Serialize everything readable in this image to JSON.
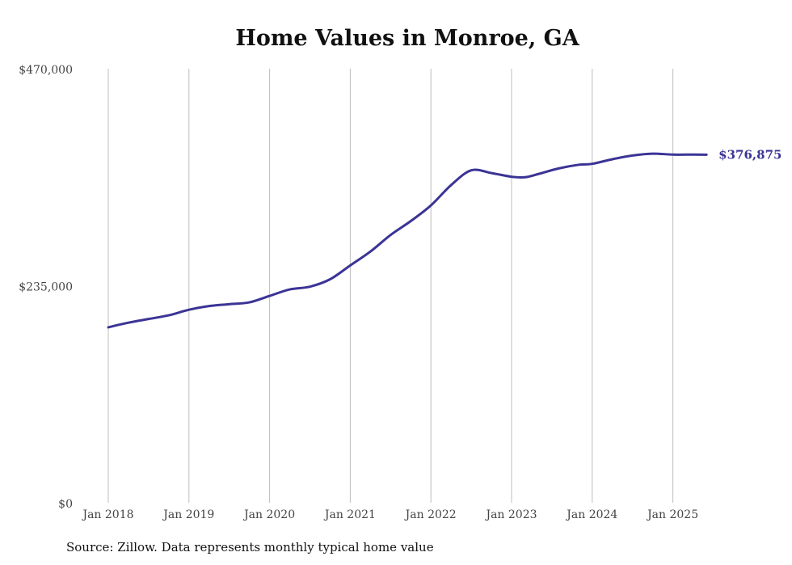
{
  "chart_data": {
    "type": "line",
    "title": "Home Values in Monroe, GA",
    "xlabel": "",
    "ylabel": "",
    "ylim": [
      0,
      470000
    ],
    "y_ticks": [
      "$0",
      "$235,000",
      "$470,000"
    ],
    "y_tick_values": [
      0,
      235000,
      470000
    ],
    "x_ticks": [
      "Jan 2018",
      "Jan 2019",
      "Jan 2020",
      "Jan 2021",
      "Jan 2022",
      "Jan 2023",
      "Jan 2024",
      "Jan 2025"
    ],
    "grid": "vertical",
    "series": [
      {
        "name": "Typical home value",
        "color": "#3b3496",
        "end_label": "$376,875",
        "points": [
          [
            "2018-01",
            190000
          ],
          [
            "2018-04",
            195000
          ],
          [
            "2018-07",
            199000
          ],
          [
            "2018-10",
            203000
          ],
          [
            "2019-01",
            209000
          ],
          [
            "2019-04",
            213000
          ],
          [
            "2019-07",
            215000
          ],
          [
            "2019-10",
            217000
          ],
          [
            "2020-01",
            224000
          ],
          [
            "2020-04",
            231000
          ],
          [
            "2020-07",
            234000
          ],
          [
            "2020-10",
            242000
          ],
          [
            "2021-01",
            257000
          ],
          [
            "2021-04",
            272000
          ],
          [
            "2021-07",
            290000
          ],
          [
            "2021-10",
            305000
          ],
          [
            "2022-01",
            322000
          ],
          [
            "2022-04",
            344000
          ],
          [
            "2022-07",
            360000
          ],
          [
            "2022-10",
            357000
          ],
          [
            "2023-01",
            353000
          ],
          [
            "2023-03",
            352500
          ],
          [
            "2023-05",
            356000
          ],
          [
            "2023-08",
            362000
          ],
          [
            "2023-11",
            366000
          ],
          [
            "2024-01",
            367000
          ],
          [
            "2024-04",
            372000
          ],
          [
            "2024-07",
            376000
          ],
          [
            "2024-10",
            378000
          ],
          [
            "2025-01",
            377000
          ],
          [
            "2025-04",
            377000
          ],
          [
            "2025-06",
            376875
          ]
        ]
      }
    ]
  },
  "source": "Source: Zillow. Data represents monthly typical home value"
}
